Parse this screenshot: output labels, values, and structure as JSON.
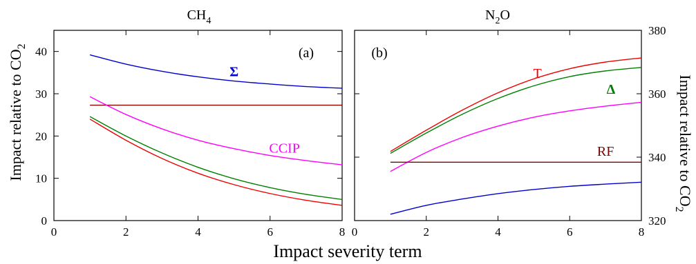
{
  "figure": {
    "xlabel": "Impact severity term",
    "colors": {
      "sigma": "#0000cc",
      "rf": "#7f0000",
      "ccip": "#ff00ff",
      "delta": "#007f00",
      "t": "#ee0000"
    }
  },
  "chart_data": [
    {
      "type": "line",
      "title_main": "CH",
      "title_sub": "4",
      "panel_tag": "(a)",
      "ylabel_main": "Impact relative to CO",
      "ylabel_sub": "2",
      "xlim": [
        0,
        8
      ],
      "ylim": [
        0,
        45
      ],
      "xticks": [
        0,
        2,
        4,
        6,
        8
      ],
      "yticks": [
        0,
        10,
        20,
        30,
        40
      ],
      "x": [
        1,
        2,
        3,
        4,
        5,
        6,
        7,
        8
      ],
      "series": [
        {
          "key": "sigma",
          "name": "Σ",
          "color": "#0000cc",
          "values": [
            39.2,
            37.0,
            35.3,
            34.0,
            33.0,
            32.3,
            31.7,
            31.3
          ],
          "label_at": [
            5.0,
            35.3
          ]
        },
        {
          "key": "rf",
          "name": "",
          "color": "#7f0000",
          "values": [
            27.3,
            27.3,
            27.3,
            27.3,
            27.3,
            27.3,
            27.3,
            27.3
          ]
        },
        {
          "key": "ccip",
          "name": "CCIP",
          "color": "#ff00ff",
          "values": [
            29.3,
            25.1,
            21.7,
            19.0,
            17.0,
            15.4,
            14.2,
            13.2
          ],
          "label_at": [
            6.4,
            17.2
          ]
        },
        {
          "key": "delta",
          "name": "",
          "color": "#007f00",
          "values": [
            24.6,
            20.0,
            16.0,
            12.6,
            9.9,
            7.8,
            6.2,
            5.0
          ]
        },
        {
          "key": "t",
          "name": "",
          "color": "#ee0000",
          "values": [
            24.0,
            19.0,
            14.7,
            11.2,
            8.5,
            6.4,
            4.8,
            3.6
          ]
        }
      ]
    },
    {
      "type": "line",
      "title_main": "N",
      "title_sub": "2",
      "title_after": "O",
      "panel_tag": "(b)",
      "ylabel_main": "Impact relative to CO",
      "ylabel_sub": "2",
      "xlim": [
        0,
        8
      ],
      "ylim": [
        320,
        380
      ],
      "xticks": [
        0,
        2,
        4,
        6,
        8
      ],
      "yticks": [
        320,
        340,
        360,
        380
      ],
      "x": [
        1,
        2,
        3,
        4,
        5,
        6,
        7,
        8
      ],
      "series": [
        {
          "key": "t",
          "name": "T",
          "color": "#ee0000",
          "values": [
            341.8,
            348.5,
            354.8,
            360.3,
            364.7,
            367.9,
            370.0,
            371.3
          ],
          "label_at": [
            5.1,
            366.5
          ]
        },
        {
          "key": "delta",
          "name": "Δ",
          "color": "#007f00",
          "values": [
            341.2,
            347.6,
            353.5,
            358.5,
            362.5,
            365.4,
            367.2,
            368.3
          ],
          "label_at": [
            7.15,
            361.5
          ]
        },
        {
          "key": "ccip",
          "name": "",
          "color": "#ff00ff",
          "values": [
            335.5,
            341.5,
            346.2,
            349.8,
            352.6,
            354.6,
            356.1,
            357.3
          ]
        },
        {
          "key": "rf",
          "name": "RF",
          "color": "#7f0000",
          "values": [
            338.4,
            338.4,
            338.4,
            338.4,
            338.4,
            338.4,
            338.4,
            338.4
          ],
          "label_at": [
            7.0,
            342.0
          ]
        },
        {
          "key": "sigma",
          "name": "",
          "color": "#0000cc",
          "values": [
            322.0,
            324.8,
            326.8,
            328.5,
            329.8,
            330.8,
            331.5,
            332.1
          ]
        }
      ]
    }
  ]
}
